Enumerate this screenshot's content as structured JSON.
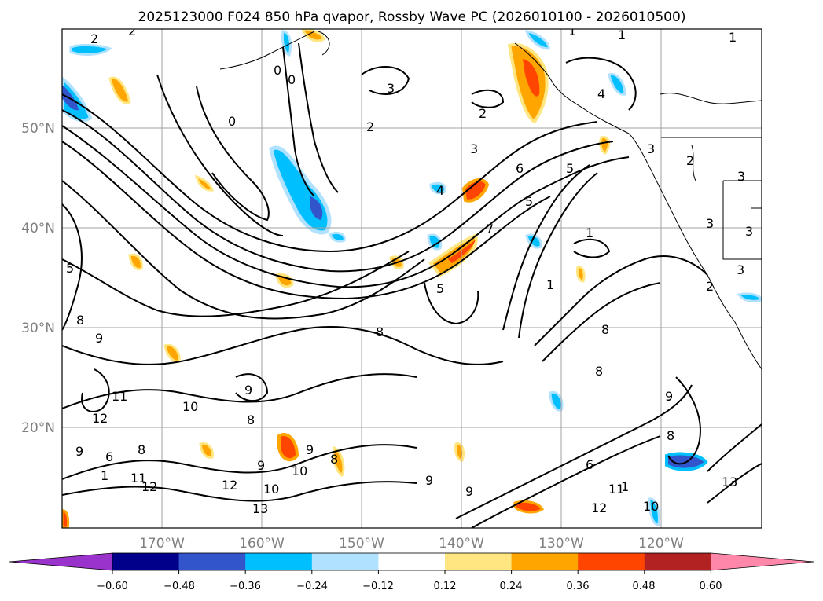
{
  "title": "2025123000 F024 850 hPa qvapor, Rossby Wave PC (2026010100 - 2026010500)",
  "map": {
    "lon_range": [
      -180,
      -110
    ],
    "lat_range": [
      10,
      60
    ],
    "lat_ticks": [
      "50°N",
      "40°N",
      "30°N",
      "20°N"
    ],
    "lon_ticks": [
      "170°W",
      "160°W",
      "150°W",
      "140°W",
      "130°W",
      "120°W"
    ],
    "grid": true
  },
  "contour_labels": [
    {
      "text": "2"
    },
    {
      "text": "2"
    },
    {
      "text": "1"
    },
    {
      "text": "1"
    },
    {
      "text": "1"
    },
    {
      "text": "0"
    },
    {
      "text": "0"
    },
    {
      "text": "0"
    },
    {
      "text": "3"
    },
    {
      "text": "2"
    },
    {
      "text": "2"
    },
    {
      "text": "4"
    },
    {
      "text": "3"
    },
    {
      "text": "3"
    },
    {
      "text": "2"
    },
    {
      "text": "3"
    },
    {
      "text": "6"
    },
    {
      "text": "5"
    },
    {
      "text": "5"
    },
    {
      "text": "4"
    },
    {
      "text": "7"
    },
    {
      "text": "1"
    },
    {
      "text": "3"
    },
    {
      "text": "3"
    },
    {
      "text": "5"
    },
    {
      "text": "5"
    },
    {
      "text": "1"
    },
    {
      "text": "3"
    },
    {
      "text": "2"
    },
    {
      "text": "8"
    },
    {
      "text": "8"
    },
    {
      "text": "9"
    },
    {
      "text": "8"
    },
    {
      "text": "8"
    },
    {
      "text": "11"
    },
    {
      "text": "10"
    },
    {
      "text": "12"
    },
    {
      "text": "9"
    },
    {
      "text": "8"
    },
    {
      "text": "9"
    },
    {
      "text": "6"
    },
    {
      "text": "8"
    },
    {
      "text": "11"
    },
    {
      "text": "12"
    },
    {
      "text": "12"
    },
    {
      "text": "10"
    },
    {
      "text": "13"
    },
    {
      "text": "9"
    },
    {
      "text": "10"
    },
    {
      "text": "8"
    },
    {
      "text": "9"
    },
    {
      "text": "9"
    },
    {
      "text": "9"
    },
    {
      "text": "6"
    },
    {
      "text": "11"
    },
    {
      "text": "12"
    },
    {
      "text": "10"
    },
    {
      "text": "9"
    },
    {
      "text": "8"
    },
    {
      "text": "13"
    },
    {
      "text": "1"
    },
    {
      "text": "1"
    }
  ],
  "colorbar": {
    "labels": [
      "−0.60",
      "−0.48",
      "−0.36",
      "−0.24",
      "−0.12",
      "0.12",
      "0.24",
      "0.36",
      "0.48",
      "0.60"
    ],
    "levels": [
      -0.6,
      -0.48,
      -0.36,
      -0.24,
      -0.12,
      0.12,
      0.24,
      0.36,
      0.48,
      0.6
    ],
    "colors": [
      "#9933cc",
      "#00008b",
      "#3355cc",
      "#00bfff",
      "#b0e2ff",
      "#ffffff",
      "#ffe680",
      "#ffa500",
      "#ff4500",
      "#b22222",
      "#ff88aa"
    ]
  }
}
